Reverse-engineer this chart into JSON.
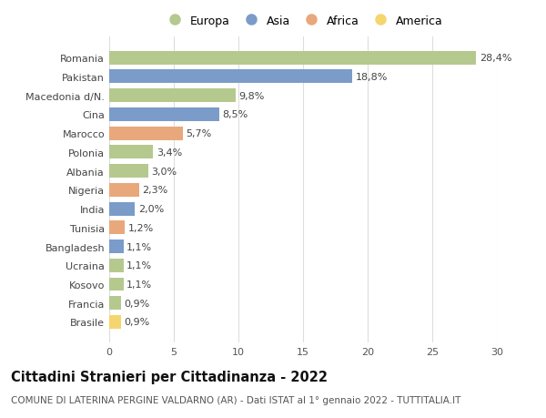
{
  "countries": [
    "Romania",
    "Pakistan",
    "Macedonia d/N.",
    "Cina",
    "Marocco",
    "Polonia",
    "Albania",
    "Nigeria",
    "India",
    "Tunisia",
    "Bangladesh",
    "Ucraina",
    "Kosovo",
    "Francia",
    "Brasile"
  ],
  "values": [
    28.4,
    18.8,
    9.8,
    8.5,
    5.7,
    3.4,
    3.0,
    2.3,
    2.0,
    1.2,
    1.1,
    1.1,
    1.1,
    0.9,
    0.9
  ],
  "labels": [
    "28,4%",
    "18,8%",
    "9,8%",
    "8,5%",
    "5,7%",
    "3,4%",
    "3,0%",
    "2,3%",
    "2,0%",
    "1,2%",
    "1,1%",
    "1,1%",
    "1,1%",
    "0,9%",
    "0,9%"
  ],
  "continents": [
    "Europa",
    "Asia",
    "Europa",
    "Asia",
    "Africa",
    "Europa",
    "Europa",
    "Africa",
    "Asia",
    "Africa",
    "Asia",
    "Europa",
    "Europa",
    "Europa",
    "America"
  ],
  "colors": {
    "Europa": "#b5c98e",
    "Asia": "#7b9cc9",
    "Africa": "#e8a87c",
    "America": "#f5d56e"
  },
  "legend_order": [
    "Europa",
    "Asia",
    "Africa",
    "America"
  ],
  "title": "Cittadini Stranieri per Cittadinanza - 2022",
  "subtitle": "COMUNE DI LATERINA PERGINE VALDARNO (AR) - Dati ISTAT al 1° gennaio 2022 - TUTTITALIA.IT",
  "xlim": [
    0,
    30
  ],
  "xticks": [
    0,
    5,
    10,
    15,
    20,
    25,
    30
  ],
  "background_color": "#ffffff",
  "grid_color": "#dddddd",
  "bar_height": 0.72,
  "label_fontsize": 8.0,
  "tick_fontsize": 8.0,
  "title_fontsize": 10.5,
  "subtitle_fontsize": 7.5
}
